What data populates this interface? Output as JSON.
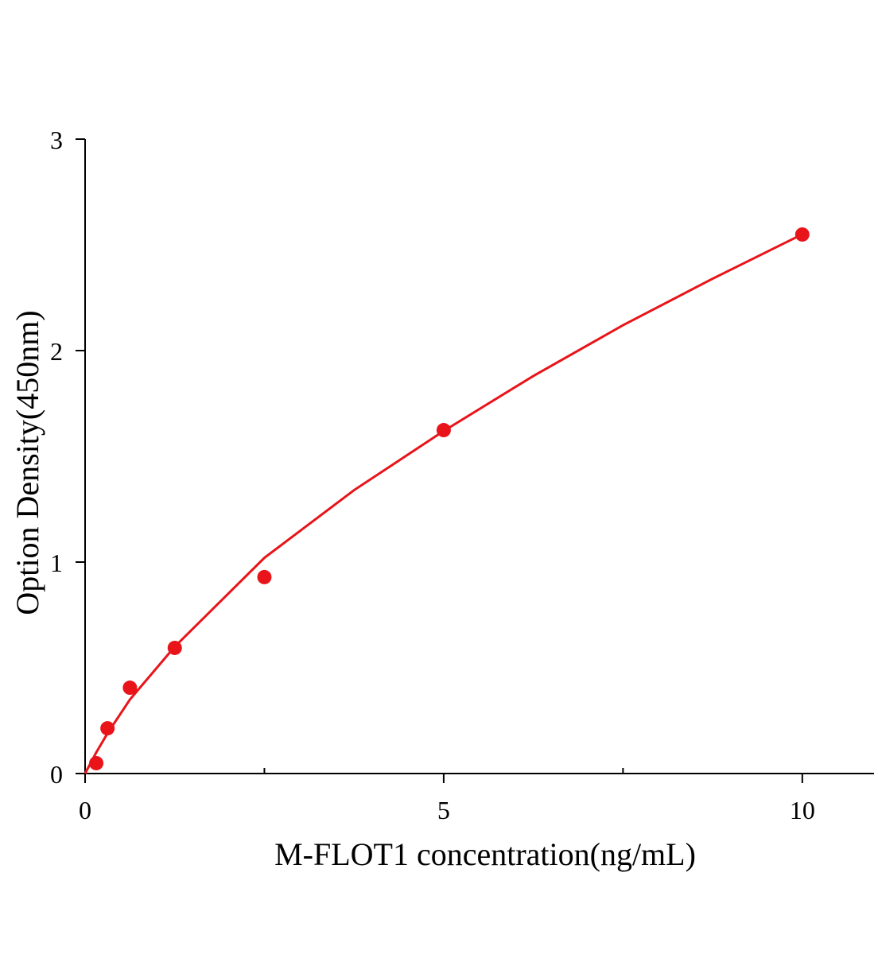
{
  "chart_data": {
    "type": "scatter",
    "x_label": "M-FLOT1 concentration(ng/mL)",
    "y_label": "Option Density(450nm)",
    "xlim": [
      0,
      11
    ],
    "ylim": [
      0,
      3
    ],
    "xticks": [
      0,
      5,
      10
    ],
    "xminorticks": [
      2.5,
      7.5
    ],
    "yticks": [
      0,
      1,
      2,
      3
    ],
    "series": [
      {
        "color": "#e8141a",
        "x": [
          0.156,
          0.3125,
          0.625,
          1.25,
          2.5,
          5,
          10
        ],
        "values": [
          0.049,
          0.214,
          0.406,
          0.594,
          0.929,
          1.624,
          2.549
        ]
      }
    ],
    "fit": {
      "color": "#e8141a",
      "x": [
        0,
        0.156,
        0.3125,
        0.625,
        1.25,
        2.5,
        3.75,
        5,
        6.25,
        7.5,
        8.75,
        10
      ],
      "values": [
        0,
        0.1,
        0.19,
        0.35,
        0.6,
        1.02,
        1.34,
        1.62,
        1.88,
        2.12,
        2.34,
        2.55
      ]
    }
  }
}
